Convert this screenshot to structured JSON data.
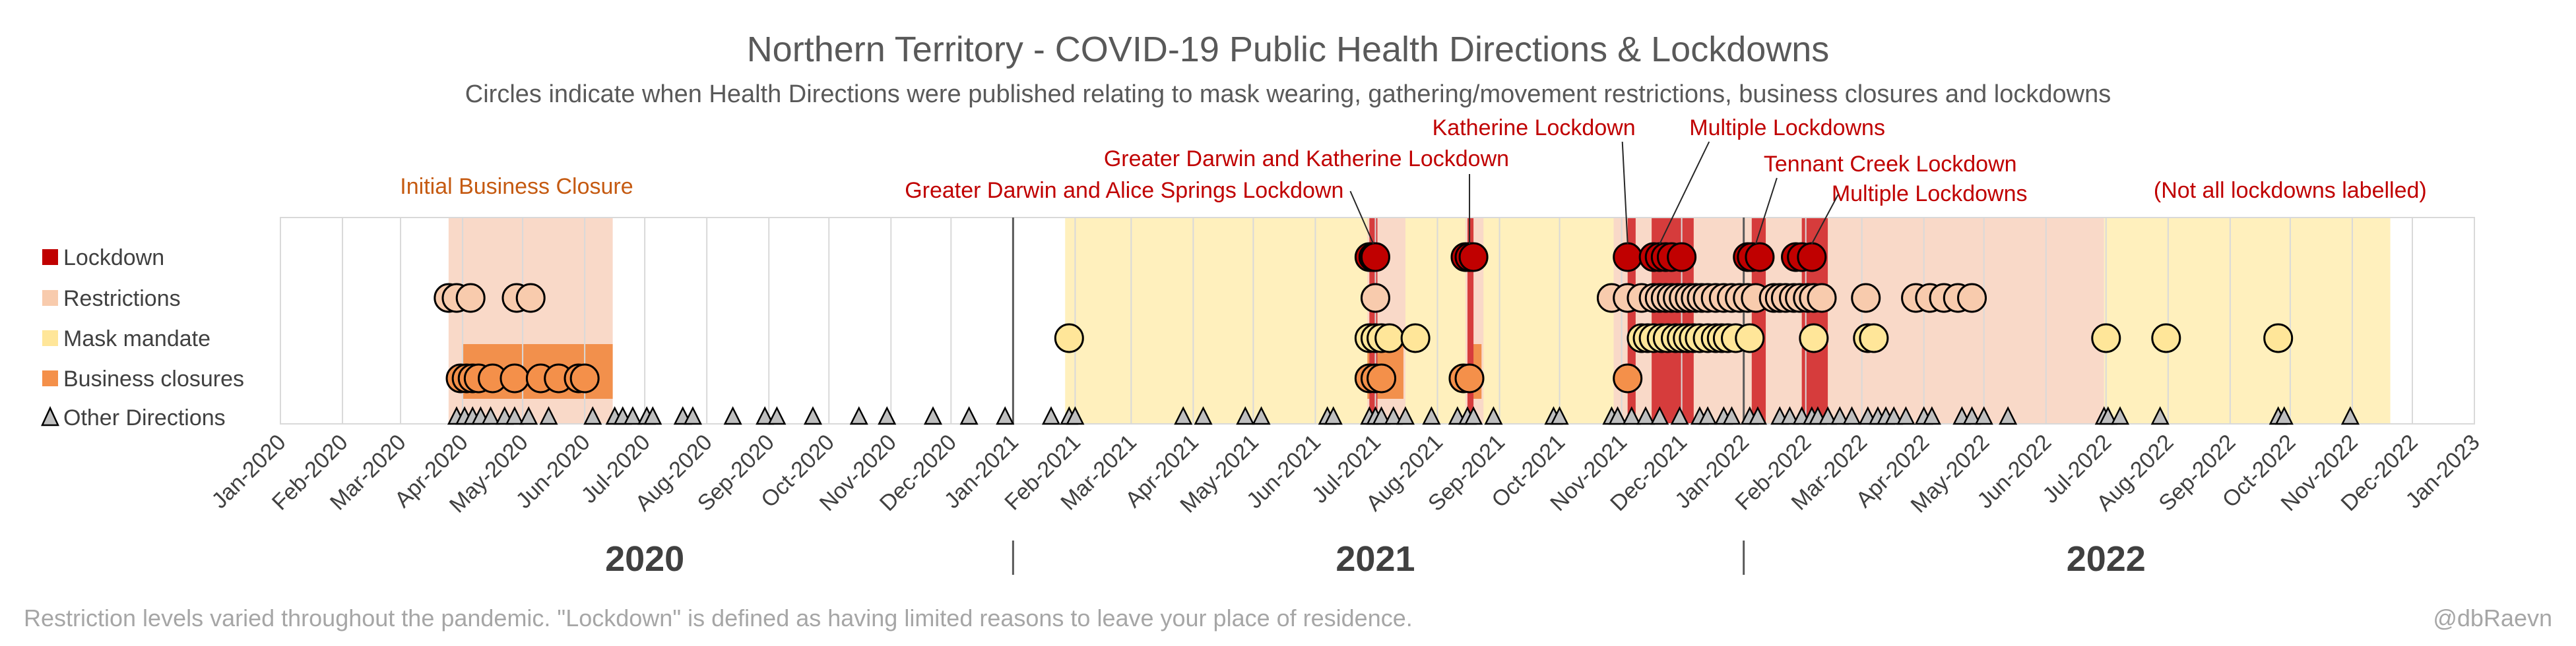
{
  "chart_data": {
    "type": "scatter",
    "title": "Northern Territory - COVID-19 Public Health Directions & Lockdowns",
    "subtitle": "Circles indicate when Health Directions were published relating to mask wearing, gathering/movement restrictions, business closures and lockdowns",
    "footer_left": "Restriction levels varied throughout the pandemic. \"Lockdown\" is defined as having limited reasons to leave your place of residence.",
    "footer_right": "@dbRaevn",
    "x_range": [
      "2020-01-01",
      "2023-01-01"
    ],
    "x_ticks": [
      "Jan-2020",
      "Feb-2020",
      "Mar-2020",
      "Apr-2020",
      "May-2020",
      "Jun-2020",
      "Jul-2020",
      "Aug-2020",
      "Sep-2020",
      "Oct-2020",
      "Nov-2020",
      "Dec-2020",
      "Jan-2021",
      "Feb-2021",
      "Mar-2021",
      "Apr-2021",
      "May-2021",
      "Jun-2021",
      "Jul-2021",
      "Aug-2021",
      "Sep-2021",
      "Oct-2021",
      "Nov-2021",
      "Dec-2021",
      "Jan-2022",
      "Feb-2022",
      "Mar-2022",
      "Apr-2022",
      "May-2022",
      "Jun-2022",
      "Jul-2022",
      "Aug-2022",
      "Sep-2022",
      "Oct-2022",
      "Nov-2022",
      "Dec-2022",
      "Jan-2023"
    ],
    "years": [
      "2020",
      "2021",
      "2022"
    ],
    "categories": [
      "Lockdown",
      "Restrictions",
      "Mask mandate",
      "Business closures",
      "Other Directions"
    ],
    "colors": {
      "Lockdown": "#c00000",
      "Lockdown_band": "#d63c3c",
      "Restrictions": "#f8cbad",
      "Restrictions_band": "#f9d9c8",
      "Mask mandate": "#ffe699",
      "Mask_band": "#fff0bd",
      "Business closures": "#f4904a",
      "Business_band": "#f2904c",
      "Other Directions": "#bfbfbf",
      "annotation_red": "#c00000",
      "annotation_orange": "#c55a11"
    },
    "bands": [
      {
        "level": "Restrictions",
        "start": "2020-03-25",
        "end": "2020-06-15"
      },
      {
        "level": "Business closures",
        "start": "2020-04-01",
        "end": "2020-06-15"
      },
      {
        "level": "Mask mandate",
        "start": "2021-01-27",
        "end": "2021-10-28"
      },
      {
        "level": "Restrictions",
        "start": "2021-06-27",
        "end": "2021-07-16"
      },
      {
        "level": "Business closures",
        "start": "2021-06-27",
        "end": "2021-07-15"
      },
      {
        "level": "Lockdown",
        "start": "2021-06-28",
        "end": "2021-07-02"
      },
      {
        "level": "Restrictions",
        "start": "2021-08-15",
        "end": "2021-08-24"
      },
      {
        "level": "Business closures",
        "start": "2021-08-16",
        "end": "2021-08-23"
      },
      {
        "level": "Lockdown",
        "start": "2021-08-16",
        "end": "2021-08-19"
      },
      {
        "level": "Restrictions",
        "start": "2021-10-28",
        "end": "2022-06-30"
      },
      {
        "level": "Lockdown",
        "start": "2021-11-04",
        "end": "2021-11-08"
      },
      {
        "level": "Lockdown",
        "start": "2021-11-16",
        "end": "2021-12-07"
      },
      {
        "level": "Lockdown",
        "start": "2022-01-05",
        "end": "2022-01-12"
      },
      {
        "level": "Lockdown",
        "start": "2022-01-30",
        "end": "2022-02-12"
      },
      {
        "level": "Mask mandate",
        "start": "2022-06-30",
        "end": "2022-11-20"
      }
    ],
    "series": [
      {
        "name": "Lockdown",
        "dates": [
          "2021-06-28",
          "2021-06-30",
          "2021-07-01",
          "2021-08-15",
          "2021-08-17",
          "2021-08-19",
          "2021-11-04",
          "2021-11-17",
          "2021-11-20",
          "2021-11-23",
          "2021-11-26",
          "2021-12-01",
          "2022-01-03",
          "2022-01-05",
          "2022-01-09",
          "2022-01-27",
          "2022-01-30",
          "2022-02-04"
        ]
      },
      {
        "name": "Restrictions",
        "dates": [
          "2020-03-25",
          "2020-03-29",
          "2020-04-05",
          "2020-04-28",
          "2020-05-05",
          "2021-07-01",
          "2021-10-27",
          "2021-11-04",
          "2021-11-11",
          "2021-11-17",
          "2021-11-20",
          "2021-11-23",
          "2021-11-26",
          "2021-11-29",
          "2021-12-02",
          "2021-12-05",
          "2021-12-08",
          "2021-12-11",
          "2021-12-14",
          "2021-12-18",
          "2021-12-22",
          "2021-12-26",
          "2021-12-30",
          "2022-01-03",
          "2022-01-07",
          "2022-01-16",
          "2022-01-19",
          "2022-01-22",
          "2022-01-26",
          "2022-01-29",
          "2022-02-02",
          "2022-02-05",
          "2022-02-09",
          "2022-03-03",
          "2022-03-28",
          "2022-04-04",
          "2022-04-11",
          "2022-04-18",
          "2022-04-25"
        ]
      },
      {
        "name": "Mask mandate",
        "dates": [
          "2021-01-29",
          "2021-06-28",
          "2021-07-01",
          "2021-07-04",
          "2021-07-08",
          "2021-07-21",
          "2021-11-11",
          "2021-11-14",
          "2021-11-17",
          "2021-11-21",
          "2021-11-24",
          "2021-11-28",
          "2021-12-01",
          "2021-12-04",
          "2021-12-07",
          "2021-12-10",
          "2021-12-14",
          "2021-12-18",
          "2021-12-21",
          "2021-12-24",
          "2021-12-28",
          "2022-01-04",
          "2022-02-05",
          "2022-03-04",
          "2022-03-07",
          "2022-07-01",
          "2022-07-31",
          "2022-09-25"
        ]
      },
      {
        "name": "Business closures",
        "dates": [
          "2020-03-31",
          "2020-04-03",
          "2020-04-06",
          "2020-04-09",
          "2020-04-16",
          "2020-04-27",
          "2020-05-10",
          "2020-05-19",
          "2020-05-29",
          "2020-06-01",
          "2021-06-28",
          "2021-07-01",
          "2021-07-04",
          "2021-08-14",
          "2021-08-17",
          "2021-11-04"
        ]
      },
      {
        "name": "Other Directions",
        "dates": [
          "2020-03-29",
          "2020-04-02",
          "2020-04-06",
          "2020-04-10",
          "2020-04-15",
          "2020-04-22",
          "2020-04-27",
          "2020-05-04",
          "2020-05-14",
          "2020-06-05",
          "2020-06-16",
          "2020-06-20",
          "2020-06-25",
          "2020-07-02",
          "2020-07-05",
          "2020-07-20",
          "2020-07-25",
          "2020-08-14",
          "2020-08-30",
          "2020-09-05",
          "2020-09-23",
          "2020-10-16",
          "2020-10-30",
          "2020-11-22",
          "2020-12-10",
          "2020-12-28",
          "2021-01-20",
          "2021-01-29",
          "2021-02-01",
          "2021-03-27",
          "2021-04-06",
          "2021-04-27",
          "2021-05-05",
          "2021-06-07",
          "2021-06-10",
          "2021-06-28",
          "2021-07-01",
          "2021-07-04",
          "2021-07-10",
          "2021-07-16",
          "2021-07-29",
          "2021-08-11",
          "2021-08-16",
          "2021-08-19",
          "2021-08-29",
          "2021-09-28",
          "2021-10-01",
          "2021-10-27",
          "2021-10-30",
          "2021-11-06",
          "2021-11-13",
          "2021-11-20",
          "2021-11-30",
          "2021-12-10",
          "2021-12-14",
          "2021-12-22",
          "2021-12-26",
          "2022-01-04",
          "2022-01-08",
          "2022-01-19",
          "2022-01-24",
          "2022-01-30",
          "2022-02-04",
          "2022-02-07",
          "2022-02-12",
          "2022-02-18",
          "2022-02-24",
          "2022-03-04",
          "2022-03-09",
          "2022-03-13",
          "2022-03-17",
          "2022-03-23",
          "2022-04-01",
          "2022-04-05",
          "2022-04-20",
          "2022-04-25",
          "2022-05-01",
          "2022-05-13",
          "2022-06-30",
          "2022-07-02",
          "2022-07-08",
          "2022-07-28",
          "2022-09-25",
          "2022-09-28",
          "2022-10-31"
        ]
      }
    ],
    "annotations": [
      {
        "text": "Initial Business Closure",
        "color": "orange",
        "x": "2020-04-28",
        "row": 0,
        "line_to": null
      },
      {
        "text": "Greater Darwin and Alice Springs Lockdown",
        "color": "red",
        "x": "2021-06-30",
        "row": 2,
        "line_to": "2021-06-30"
      },
      {
        "text": "Greater Darwin and Katherine Lockdown",
        "color": "red",
        "x": "2021-08-17",
        "row": 1,
        "line_to": "2021-08-17"
      },
      {
        "text": "Katherine Lockdown",
        "color": "red",
        "x": "2021-11-04",
        "row": 3,
        "line_to": "2021-11-04"
      },
      {
        "text": "Multiple Lockdowns",
        "color": "red",
        "x": "2021-11-20",
        "row": 3,
        "line_to": "2021-11-20",
        "anchor": "start"
      },
      {
        "text": "Tennant Creek Lockdown",
        "color": "red",
        "x": "2022-01-07",
        "row": 4,
        "line_to": "2022-01-07",
        "anchor": "start"
      },
      {
        "text": "Multiple Lockdowns",
        "color": "red",
        "x": "2022-02-04",
        "row": 5,
        "line_to": "2022-02-04",
        "anchor": "start"
      },
      {
        "text": "(Not all lockdowns labelled)",
        "color": "red",
        "x": "2022-11-25",
        "row": 5,
        "line_to": null,
        "anchor": "end"
      }
    ],
    "grid": true,
    "legend_position": "left"
  }
}
